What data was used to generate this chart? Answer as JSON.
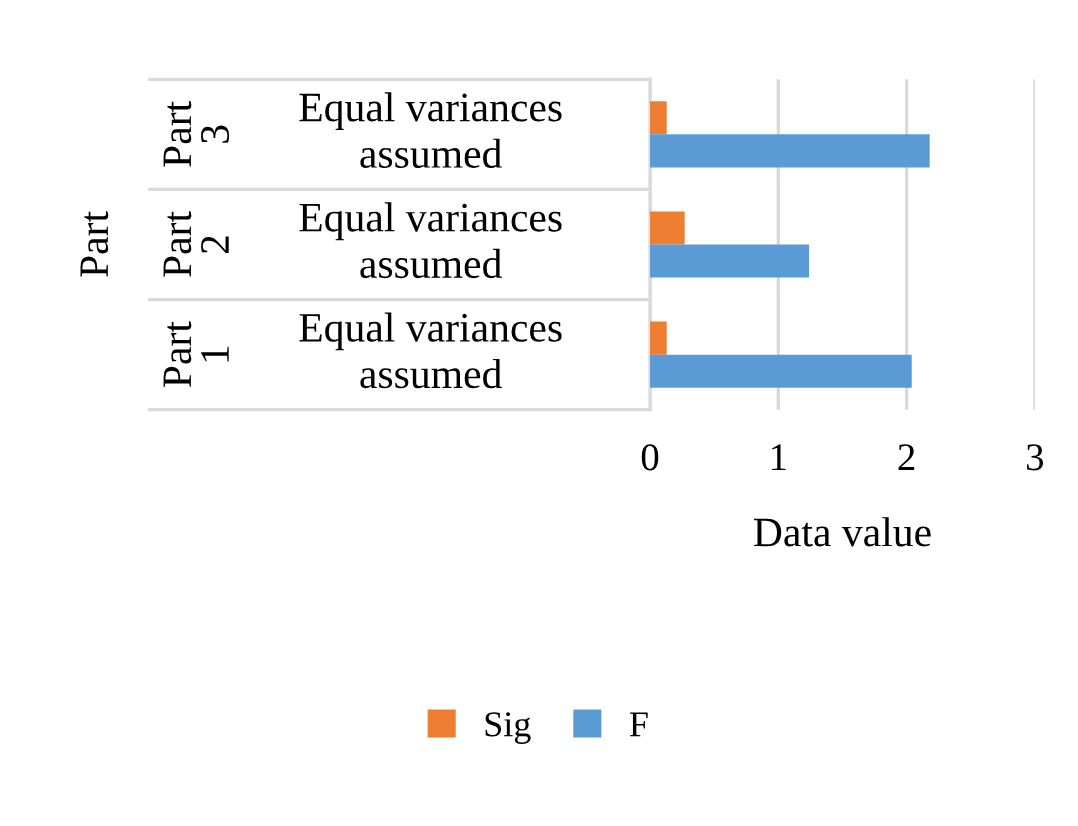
{
  "chart_data": {
    "type": "bar",
    "orientation": "horizontal",
    "xlabel": "Data value",
    "ylabel": "Part",
    "categories": [
      "Equal variances assumed",
      "Equal variances assumed",
      "Equal variances assumed"
    ],
    "annotations": [
      "Part 3",
      "Part 2",
      "Part 1"
    ],
    "series": [
      {
        "name": "Sig",
        "color": "#ed7d31",
        "values": [
          0.13,
          0.27,
          0.13
        ]
      },
      {
        "name": "F",
        "color": "#5b9bd5",
        "values": [
          2.18,
          1.24,
          2.04
        ]
      }
    ],
    "xlim": [
      0,
      3
    ],
    "xticks": [
      0,
      1,
      2,
      3
    ],
    "grid": "x",
    "legend": "bottom"
  }
}
